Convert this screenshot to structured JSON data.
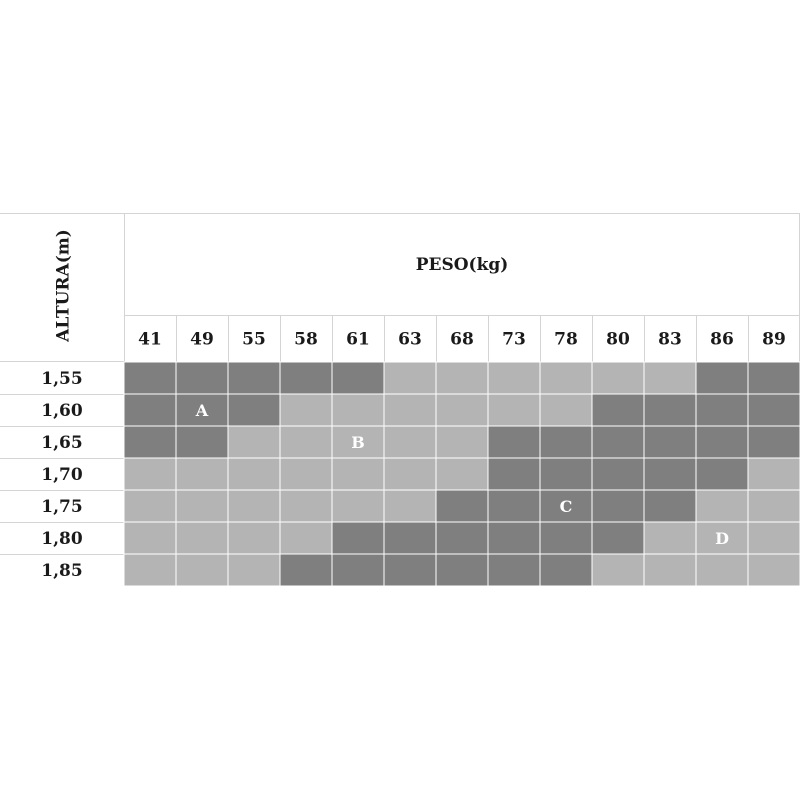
{
  "chart_data": {
    "type": "heatmap",
    "title": "",
    "xlabel": "PESO(kg)",
    "ylabel": "ALTURA(m)",
    "x_categories": [
      "41",
      "49",
      "55",
      "58",
      "61",
      "63",
      "68",
      "73",
      "78",
      "80",
      "83",
      "86",
      "89"
    ],
    "y_categories": [
      "1,55",
      "1,60",
      "1,65",
      "1,70",
      "1,75",
      "1,80",
      "1,85"
    ],
    "level_colors": {
      "dark": "#7f7f7f",
      "light": "#b4b4b4"
    },
    "values": [
      [
        "dark",
        "dark",
        "dark",
        "dark",
        "dark",
        "light",
        "light",
        "light",
        "light",
        "light",
        "light",
        "dark",
        "dark"
      ],
      [
        "dark",
        "dark",
        "dark",
        "light",
        "light",
        "light",
        "light",
        "light",
        "light",
        "dark",
        "dark",
        "dark",
        "dark"
      ],
      [
        "dark",
        "dark",
        "light",
        "light",
        "light",
        "light",
        "light",
        "dark",
        "dark",
        "dark",
        "dark",
        "dark",
        "dark"
      ],
      [
        "light",
        "light",
        "light",
        "light",
        "light",
        "light",
        "light",
        "dark",
        "dark",
        "dark",
        "dark",
        "dark",
        "light"
      ],
      [
        "light",
        "light",
        "light",
        "light",
        "light",
        "light",
        "dark",
        "dark",
        "dark",
        "dark",
        "dark",
        "light",
        "light"
      ],
      [
        "light",
        "light",
        "light",
        "light",
        "dark",
        "dark",
        "dark",
        "dark",
        "dark",
        "dark",
        "light",
        "light",
        "light"
      ],
      [
        "light",
        "light",
        "light",
        "dark",
        "dark",
        "dark",
        "dark",
        "dark",
        "dark",
        "light",
        "light",
        "light",
        "light"
      ]
    ],
    "annotations": [
      {
        "text": "A",
        "row": "1,60",
        "col": "49"
      },
      {
        "text": "B",
        "row": "1,65",
        "col": "61"
      },
      {
        "text": "C",
        "row": "1,75",
        "col": "78"
      },
      {
        "text": "D",
        "row": "1,80",
        "col": "86"
      }
    ]
  }
}
